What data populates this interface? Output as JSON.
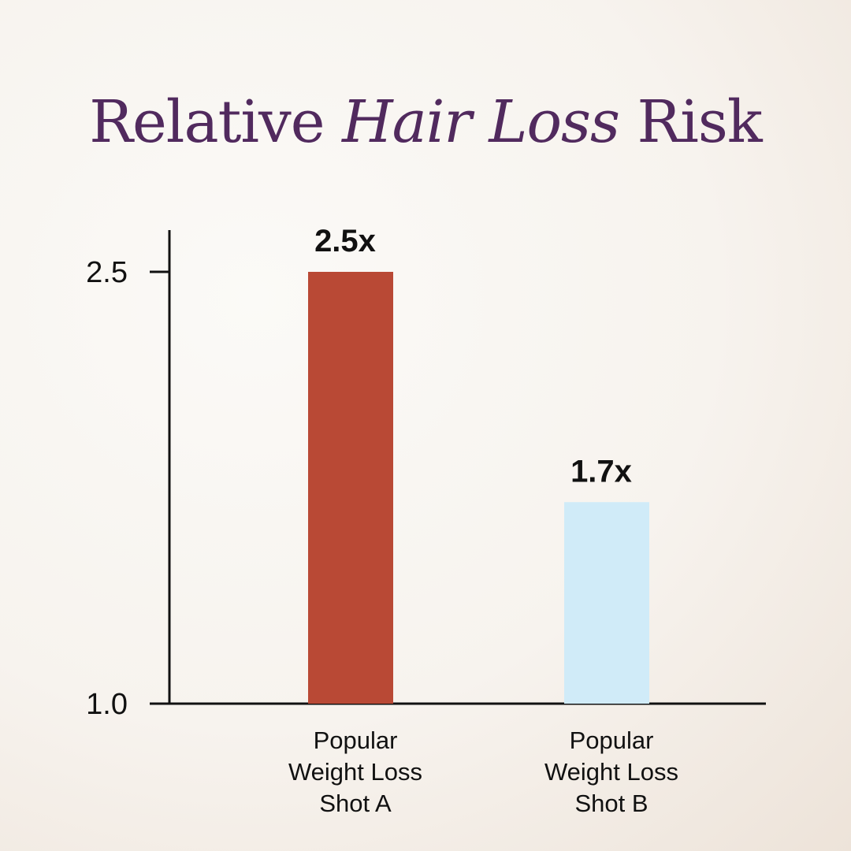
{
  "title": {
    "part1": "Relative ",
    "part2": "Hair Loss",
    "part3": " Risk"
  },
  "colors": {
    "title": "#512a5e",
    "axis": "#111111",
    "bar_a": "#b94935",
    "bar_b": "#d0ebf8"
  },
  "chart_data": {
    "type": "bar",
    "title": "Relative Hair Loss Risk",
    "categories": [
      [
        "Popular",
        "Weight Loss",
        "Shot A"
      ],
      [
        "Popular",
        "Weight Loss",
        "Shot B"
      ]
    ],
    "values": [
      2.5,
      1.7
    ],
    "data_labels": [
      "2.5x",
      "1.7x"
    ],
    "bar_colors": [
      "#b94935",
      "#d0ebf8"
    ],
    "yticks": [
      1.0,
      2.5
    ],
    "ytick_labels": [
      "1.0",
      "2.5"
    ],
    "ylim": [
      1.0,
      2.5
    ],
    "xlabel": "",
    "ylabel": "",
    "grid": false,
    "legend": false
  }
}
